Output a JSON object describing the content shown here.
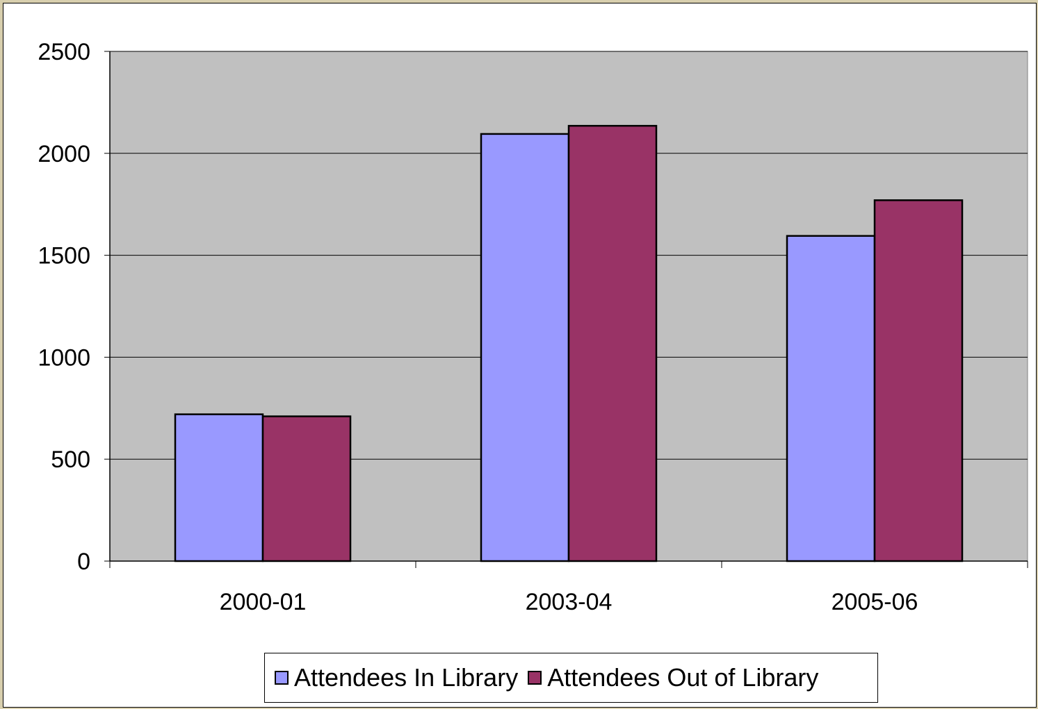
{
  "chart_data": {
    "type": "bar",
    "title": "",
    "xlabel": "",
    "ylabel": "",
    "categories": [
      "2000-01",
      "2003-04",
      "2005-06"
    ],
    "series": [
      {
        "name": "Attendees In Library",
        "values": [
          720,
          2095,
          1595
        ],
        "color": "#9999ff"
      },
      {
        "name": "Attendees Out of Library",
        "values": [
          710,
          2135,
          1770
        ],
        "color": "#993366"
      }
    ],
    "ylim": [
      0,
      2500
    ],
    "yticks": [
      0,
      500,
      1000,
      1500,
      2000,
      2500
    ],
    "grid": true,
    "plot_background": "#c0c0c0",
    "legend_position": "bottom"
  }
}
